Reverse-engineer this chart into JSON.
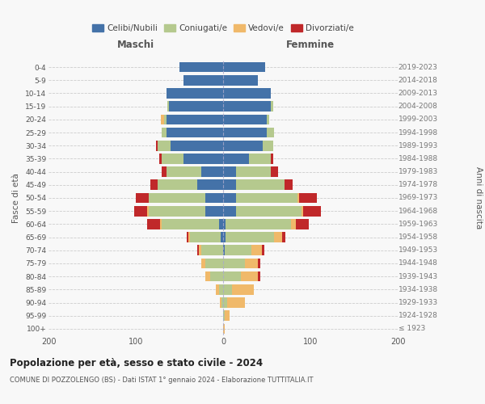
{
  "age_groups": [
    "100+",
    "95-99",
    "90-94",
    "85-89",
    "80-84",
    "75-79",
    "70-74",
    "65-69",
    "60-64",
    "55-59",
    "50-54",
    "45-49",
    "40-44",
    "35-39",
    "30-34",
    "25-29",
    "20-24",
    "15-19",
    "10-14",
    "5-9",
    "0-4"
  ],
  "birth_years": [
    "≤ 1923",
    "1924-1928",
    "1929-1933",
    "1934-1938",
    "1939-1943",
    "1944-1948",
    "1949-1953",
    "1954-1958",
    "1959-1963",
    "1964-1968",
    "1969-1973",
    "1974-1978",
    "1979-1983",
    "1984-1988",
    "1989-1993",
    "1994-1998",
    "1999-2003",
    "2004-2008",
    "2009-2013",
    "2014-2018",
    "2019-2023"
  ],
  "colors": {
    "celibi": "#4472a8",
    "coniugati": "#b5c98e",
    "vedovi": "#f0b96a",
    "divorziati": "#c0282a"
  },
  "males": {
    "celibi": [
      0,
      0,
      0,
      0,
      0,
      0,
      0,
      3,
      5,
      20,
      20,
      30,
      25,
      45,
      60,
      65,
      65,
      62,
      65,
      45,
      50
    ],
    "coniugati": [
      0,
      0,
      2,
      5,
      15,
      20,
      25,
      35,
      65,
      65,
      65,
      45,
      40,
      25,
      15,
      5,
      3,
      2,
      0,
      0,
      0
    ],
    "vedovi": [
      0,
      0,
      2,
      3,
      5,
      5,
      3,
      2,
      2,
      2,
      0,
      0,
      0,
      0,
      0,
      0,
      3,
      0,
      0,
      0,
      0
    ],
    "divorziati": [
      0,
      0,
      0,
      0,
      0,
      0,
      2,
      2,
      15,
      15,
      15,
      8,
      5,
      3,
      2,
      0,
      0,
      0,
      0,
      0,
      0
    ]
  },
  "females": {
    "celibi": [
      0,
      0,
      0,
      0,
      0,
      0,
      2,
      3,
      3,
      15,
      15,
      15,
      15,
      30,
      45,
      50,
      50,
      55,
      55,
      40,
      48
    ],
    "coniugati": [
      0,
      2,
      5,
      10,
      20,
      25,
      30,
      55,
      75,
      75,
      70,
      55,
      40,
      25,
      12,
      8,
      3,
      2,
      0,
      0,
      0
    ],
    "vedovi": [
      2,
      5,
      20,
      25,
      20,
      15,
      12,
      10,
      5,
      2,
      2,
      0,
      0,
      0,
      0,
      0,
      0,
      0,
      0,
      0,
      0
    ],
    "divorziati": [
      0,
      0,
      0,
      0,
      3,
      3,
      3,
      3,
      15,
      20,
      20,
      10,
      8,
      2,
      0,
      0,
      0,
      0,
      0,
      0,
      0
    ]
  },
  "xlim": 200,
  "title": "Popolazione per età, sesso e stato civile - 2024",
  "subtitle": "COMUNE DI POZZOLENGO (BS) - Dati ISTAT 1° gennaio 2024 - Elaborazione TUTTITALIA.IT",
  "ylabel_left": "Fasce di età",
  "ylabel_right": "Anni di nascita",
  "xlabel_left": "Maschi",
  "xlabel_right": "Femmine",
  "legend_labels": [
    "Celibi/Nubili",
    "Coniugati/e",
    "Vedovi/e",
    "Divorziati/e"
  ],
  "bg_color": "#f8f8f8"
}
